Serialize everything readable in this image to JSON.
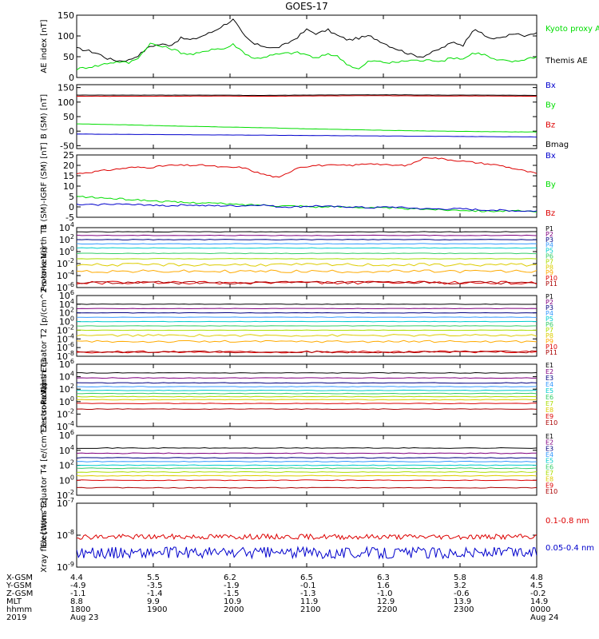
{
  "title": "GOES-17",
  "colors": {
    "black": "#000000",
    "green": "#00dd00",
    "blue": "#0000cc",
    "red": "#dd0000",
    "navy": "#000080",
    "purple": "#800080",
    "teal": "#00aaaa",
    "cyan": "#00cccc",
    "lime": "#44dd00",
    "yellowgreen": "#aadd00",
    "yellow": "#ddcc00",
    "orange": "#ffaa00",
    "darkred": "#aa0000",
    "brown": "#8b0000",
    "magenta": "#aa00aa",
    "ltblue": "#3399ff",
    "ltgreen": "#33cc66"
  },
  "chart_data": [
    {
      "id": "ae",
      "type": "line",
      "ylabel": "AE index [nT]",
      "ylim": [
        0,
        150
      ],
      "y_ticks": [
        "0",
        "50",
        "100",
        "150"
      ],
      "legend": [
        {
          "label": "Kyoto proxy AE",
          "color": "green"
        },
        {
          "label": "Themis AE",
          "color": "black"
        }
      ],
      "series": [
        {
          "name": "Themis AE",
          "color": "black",
          "values": [
            70,
            65,
            58,
            45,
            40,
            42,
            55,
            75,
            80,
            78,
            95,
            90,
            100,
            110,
            125,
            140,
            100,
            80,
            75,
            70,
            80,
            95,
            115,
            105,
            115,
            100,
            90,
            95,
            100,
            88,
            75,
            65,
            55,
            50,
            60,
            72,
            85,
            78,
            120,
            100,
            92,
            100,
            105,
            98,
            108
          ]
        },
        {
          "name": "Kyoto proxy AE",
          "color": "green",
          "values": [
            20,
            25,
            28,
            35,
            38,
            35,
            50,
            82,
            75,
            70,
            60,
            55,
            60,
            70,
            68,
            80,
            60,
            45,
            50,
            55,
            58,
            60,
            55,
            45,
            58,
            50,
            30,
            20,
            40,
            38,
            35,
            38,
            42,
            40,
            42,
            40,
            48,
            45,
            60,
            55,
            42,
            40,
            38,
            45,
            50
          ]
        }
      ]
    },
    {
      "id": "bsm",
      "type": "line",
      "ylabel": "B (SM) [nT]",
      "ylim": [
        -60,
        160
      ],
      "y_ticks": [
        "150",
        "100",
        "50",
        "0",
        "-50"
      ],
      "legend": [
        {
          "label": "Bx",
          "color": "blue"
        },
        {
          "label": "By",
          "color": "green"
        },
        {
          "label": "Bz",
          "color": "red"
        },
        {
          "label": "Bmag",
          "color": "black"
        }
      ],
      "series": [
        {
          "name": "Bx",
          "color": "blue",
          "values": [
            -10,
            -11,
            -12,
            -13,
            -14,
            -15,
            -16,
            -17,
            -18,
            -19,
            -20
          ]
        },
        {
          "name": "By",
          "color": "green",
          "values": [
            25,
            22,
            18,
            15,
            12,
            8,
            5,
            2,
            0,
            -2,
            -3
          ]
        },
        {
          "name": "Bz",
          "color": "red",
          "values": [
            120,
            120,
            120,
            121,
            120,
            121,
            122,
            122,
            121,
            121,
            120
          ]
        },
        {
          "name": "Bmag",
          "color": "black",
          "values": [
            124,
            124,
            124,
            124,
            123,
            124,
            125,
            125,
            124,
            124,
            123
          ]
        }
      ]
    },
    {
      "id": "bdiff",
      "type": "line",
      "ylabel": "B (SM)-IGRF (SM) [nT]",
      "ylim": [
        -5,
        25
      ],
      "y_ticks": [
        "25",
        "20",
        "15",
        "10",
        "5",
        "0",
        "-5"
      ],
      "legend": [
        {
          "label": "Bx",
          "color": "blue"
        },
        {
          "label": "By",
          "color": "green"
        },
        {
          "label": "Bz",
          "color": "red"
        }
      ],
      "series": [
        {
          "name": "Bz",
          "color": "red",
          "values": [
            16,
            17,
            18,
            19,
            19,
            20,
            20,
            20,
            19,
            19,
            16,
            14,
            19,
            20,
            20,
            20,
            21,
            20,
            20,
            24,
            23,
            22,
            21,
            20,
            18,
            16
          ]
        },
        {
          "name": "By",
          "color": "green",
          "values": [
            5,
            4.5,
            4,
            3.5,
            3,
            2.5,
            2,
            2,
            1.5,
            1,
            1,
            0.5,
            0.5,
            0,
            0,
            0,
            -0.5,
            -0.5,
            -1,
            -1,
            -1.5,
            -1.5,
            -2,
            -2,
            -2,
            -2.5
          ]
        },
        {
          "name": "Bx",
          "color": "blue",
          "values": [
            1,
            1,
            1.5,
            1,
            1,
            0.5,
            1,
            0.5,
            0.5,
            0.5,
            1,
            0,
            0,
            0.5,
            0,
            0,
            -0.5,
            0,
            -0.5,
            -1,
            -1,
            -1,
            -1.5,
            -1.5,
            -2,
            -2
          ]
        }
      ]
    },
    {
      "id": "protonsN",
      "type": "line",
      "ylabel": "Protons North T1",
      "y_scale": "log",
      "ylim_exp": [
        -6,
        4
      ],
      "y_ticks": [
        "10^4",
        "10^2",
        "10^0",
        "10^-2",
        "10^-4",
        "10^-6"
      ],
      "legend": [
        {
          "label": "P1",
          "color": "black"
        },
        {
          "label": "P2",
          "color": "purple"
        },
        {
          "label": "P3",
          "color": "navy"
        },
        {
          "label": "P4",
          "color": "ltblue"
        },
        {
          "label": "P5",
          "color": "cyan"
        },
        {
          "label": "P6",
          "color": "ltgreen"
        },
        {
          "label": "P7",
          "color": "yellowgreen"
        },
        {
          "label": "P8",
          "color": "yellow"
        },
        {
          "label": "P9",
          "color": "orange"
        },
        {
          "label": "P10",
          "color": "red"
        },
        {
          "label": "P11",
          "color": "darkred"
        }
      ],
      "levels": [
        3.3,
        2.7,
        2.0,
        1.3,
        0.6,
        -0.3,
        -1.2,
        -2.2,
        -3.3,
        -5.2,
        -5.2
      ]
    },
    {
      "id": "protonsE",
      "type": "line",
      "ylabel": "Protons Equator T2 [p/(cm^2-s-sr-keV)]",
      "y_scale": "log",
      "ylim_exp": [
        -8,
        6
      ],
      "y_ticks": [
        "10^6",
        "10^4",
        "10^2",
        "10^0",
        "10^-2",
        "10^-4",
        "10^-6",
        "10^-8"
      ],
      "legend": [
        {
          "label": "P1",
          "color": "black"
        },
        {
          "label": "P2",
          "color": "purple"
        },
        {
          "label": "P3",
          "color": "navy"
        },
        {
          "label": "P4",
          "color": "ltblue"
        },
        {
          "label": "P5",
          "color": "cyan"
        },
        {
          "label": "P6",
          "color": "ltgreen"
        },
        {
          "label": "P7",
          "color": "yellowgreen"
        },
        {
          "label": "P8",
          "color": "yellow"
        },
        {
          "label": "P9",
          "color": "orange"
        },
        {
          "label": "P10",
          "color": "red"
        },
        {
          "label": "P11",
          "color": "darkred"
        }
      ],
      "levels": [
        4.0,
        3.0,
        2.0,
        1.0,
        0.0,
        -1.0,
        -2.0,
        -3.2,
        -4.6,
        -7.0,
        -7.0
      ]
    },
    {
      "id": "electronsN",
      "type": "line",
      "ylabel": "Electrons North T3",
      "y_scale": "log",
      "ylim_exp": [
        -4,
        6
      ],
      "y_ticks": [
        "10^6",
        "10^4",
        "10^2",
        "10^0",
        "10^-2",
        "10^-4"
      ],
      "legend": [
        {
          "label": "E1",
          "color": "black"
        },
        {
          "label": "E2",
          "color": "purple"
        },
        {
          "label": "E3",
          "color": "navy"
        },
        {
          "label": "E4",
          "color": "ltblue"
        },
        {
          "label": "E5",
          "color": "cyan"
        },
        {
          "label": "E6",
          "color": "ltgreen"
        },
        {
          "label": "E7",
          "color": "yellowgreen"
        },
        {
          "label": "E8",
          "color": "yellow"
        },
        {
          "label": "E9",
          "color": "red"
        },
        {
          "label": "E10",
          "color": "darkred"
        }
      ],
      "levels": [
        4.6,
        3.8,
        3.0,
        2.4,
        1.8,
        1.3,
        0.8,
        0.3,
        -0.3,
        -1.2
      ]
    },
    {
      "id": "electronsE",
      "type": "line",
      "ylabel": "Electrons Equator T4 [e/(cm^2-s-sr-keV)]",
      "y_scale": "log",
      "ylim_exp": [
        -2,
        6
      ],
      "y_ticks": [
        "10^6",
        "10^4",
        "10^2",
        "10^0",
        "10^-2"
      ],
      "legend": [
        {
          "label": "E1",
          "color": "black"
        },
        {
          "label": "E2",
          "color": "purple"
        },
        {
          "label": "E3",
          "color": "navy"
        },
        {
          "label": "E4",
          "color": "ltblue"
        },
        {
          "label": "E5",
          "color": "cyan"
        },
        {
          "label": "E6",
          "color": "ltgreen"
        },
        {
          "label": "E7",
          "color": "yellowgreen"
        },
        {
          "label": "E8",
          "color": "yellow"
        },
        {
          "label": "E9",
          "color": "red"
        },
        {
          "label": "E10",
          "color": "darkred"
        }
      ],
      "levels": [
        4.3,
        3.6,
        3.0,
        2.5,
        2.0,
        1.6,
        1.1,
        0.6,
        0.0,
        -1.0
      ]
    },
    {
      "id": "xray",
      "type": "line",
      "ylabel": "Xray flux [W/m^2]",
      "y_scale": "log",
      "ylim_exp": [
        -9,
        -7
      ],
      "y_ticks": [
        "10^-7",
        "10^-8",
        "10^-9"
      ],
      "legend": [
        {
          "label": "0.1-0.8 nm",
          "color": "red"
        },
        {
          "label": "0.05-0.4 nm",
          "color": "blue"
        }
      ],
      "levels": [
        -8.05,
        -8.55
      ]
    }
  ],
  "x_axis": {
    "row_labels": [
      "X-GSM",
      "Y-GSM",
      "Z-GSM",
      "MLT",
      "hhmm",
      "2019"
    ],
    "columns": [
      {
        "vals": [
          "4.4",
          "-4.9",
          "-1.1",
          "8.8",
          "1800",
          "Aug 23"
        ]
      },
      {
        "vals": [
          "5.5",
          "-3.5",
          "-1.4",
          "9.9",
          "1900",
          ""
        ]
      },
      {
        "vals": [
          "6.2",
          "-1.9",
          "-1.5",
          "10.9",
          "2000",
          ""
        ]
      },
      {
        "vals": [
          "6.5",
          "-0.1",
          "-1.3",
          "11.9",
          "2100",
          ""
        ]
      },
      {
        "vals": [
          "6.3",
          "1.6",
          "-1.0",
          "12.9",
          "2200",
          ""
        ]
      },
      {
        "vals": [
          "5.8",
          "3.2",
          "-0.6",
          "13.9",
          "2300",
          ""
        ]
      },
      {
        "vals": [
          "4.8",
          "4.5",
          "-0.2",
          "14.9",
          "0000",
          "Aug 24"
        ]
      }
    ]
  }
}
